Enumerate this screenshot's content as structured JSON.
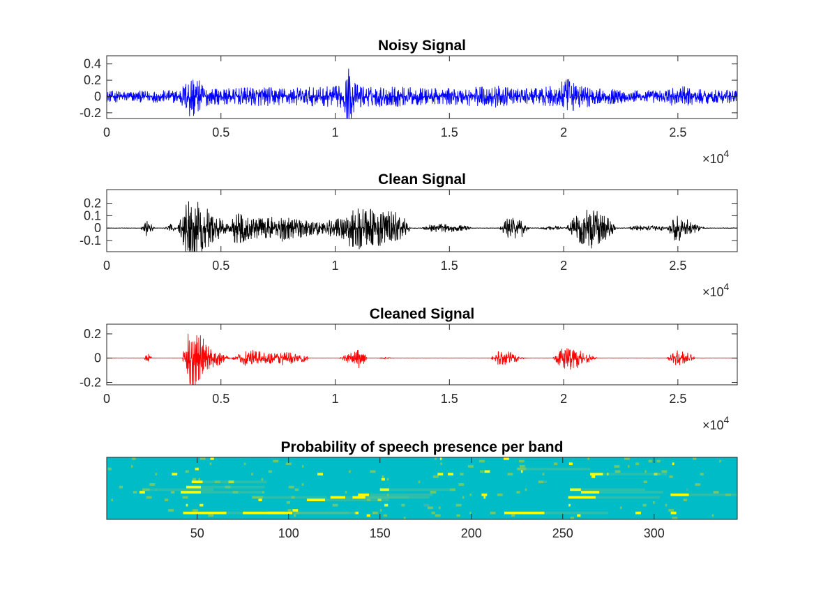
{
  "chart_data": [
    {
      "type": "line",
      "title": "Noisy Signal",
      "xlabel": "",
      "ylabel": "",
      "xlim": [
        0,
        27600
      ],
      "ylim": [
        -0.27,
        0.5
      ],
      "x_ticks": [
        0,
        5000,
        10000,
        15000,
        20000,
        25000
      ],
      "x_tick_labels": [
        "0",
        "0.5",
        "1",
        "1.5",
        "2",
        "2.5"
      ],
      "x_exponent": {
        "base": "×10",
        "power": "4"
      },
      "y_ticks": [
        -0.2,
        0,
        0.2,
        0.4
      ],
      "y_tick_labels": [
        "-0.2",
        "0",
        "0.2",
        "0.4"
      ],
      "grid": false,
      "color": "#0000ff",
      "envelope": {
        "x": [
          0,
          1500,
          3000,
          3400,
          3700,
          4100,
          4500,
          5500,
          6500,
          8000,
          9500,
          10300,
          10600,
          10900,
          11500,
          12500,
          13500,
          15000,
          16000,
          17000,
          17500,
          18000,
          19000,
          19800,
          20100,
          20500,
          21500,
          23000,
          24500,
          24900,
          25300,
          26000,
          27600
        ],
        "amplitude": [
          0.07,
          0.07,
          0.08,
          0.16,
          0.33,
          0.18,
          0.1,
          0.1,
          0.12,
          0.11,
          0.12,
          0.14,
          0.37,
          0.16,
          0.12,
          0.13,
          0.11,
          0.1,
          0.12,
          0.14,
          0.11,
          0.1,
          0.1,
          0.16,
          0.23,
          0.17,
          0.1,
          0.08,
          0.08,
          0.14,
          0.12,
          0.09,
          0.08
        ]
      }
    },
    {
      "type": "line",
      "title": "Clean Signal",
      "xlabel": "",
      "ylabel": "",
      "xlim": [
        0,
        27600
      ],
      "ylim": [
        -0.19,
        0.31
      ],
      "x_ticks": [
        0,
        5000,
        10000,
        15000,
        20000,
        25000
      ],
      "x_tick_labels": [
        "0",
        "0.5",
        "1",
        "1.5",
        "2",
        "2.5"
      ],
      "x_exponent": {
        "base": "×10",
        "power": "4"
      },
      "y_ticks": [
        -0.1,
        0,
        0.1,
        0.2
      ],
      "y_tick_labels": [
        "-0.1",
        "0",
        "0.1",
        "0.2"
      ],
      "grid": false,
      "color": "#000000",
      "envelope": {
        "x": [
          0,
          1500,
          1700,
          1900,
          2100,
          2500,
          2700,
          2900,
          3100,
          3400,
          3700,
          4200,
          4800,
          5300,
          5600,
          5800,
          6200,
          7000,
          7600,
          8200,
          8800,
          9500,
          10200,
          10600,
          10900,
          11300,
          11700,
          12200,
          12700,
          13000,
          13300,
          13800,
          14200,
          14800,
          15200,
          15500,
          16000,
          17200,
          17600,
          18200,
          18500,
          18800,
          19400,
          19700,
          20100,
          20600,
          21300,
          21500,
          22000,
          22300,
          22800,
          23100,
          24300,
          24500,
          24900,
          25300,
          25800,
          26200,
          27600
        ],
        "amplitude": [
          0.002,
          0.002,
          0.07,
          0.05,
          0.002,
          0.002,
          0.03,
          0.035,
          0.002,
          0.2,
          0.29,
          0.19,
          0.1,
          0.035,
          0.12,
          0.14,
          0.09,
          0.08,
          0.11,
          0.09,
          0.07,
          0.05,
          0.09,
          0.15,
          0.2,
          0.15,
          0.16,
          0.14,
          0.13,
          0.1,
          0.003,
          0.003,
          0.03,
          0.035,
          0.03,
          0.03,
          0.003,
          0.003,
          0.1,
          0.07,
          0.003,
          0.003,
          0.015,
          0.02,
          0.003,
          0.12,
          0.18,
          0.13,
          0.09,
          0.003,
          0.003,
          0.022,
          0.018,
          0.003,
          0.12,
          0.08,
          0.03,
          0.003,
          0.003
        ]
      }
    },
    {
      "type": "line",
      "title": "Cleaned Signal",
      "xlabel": "",
      "ylabel": "",
      "xlim": [
        0,
        27600
      ],
      "ylim": [
        -0.22,
        0.28
      ],
      "x_ticks": [
        0,
        5000,
        10000,
        15000,
        20000,
        25000
      ],
      "x_tick_labels": [
        "0",
        "0.5",
        "1",
        "1.5",
        "2",
        "2.5"
      ],
      "x_exponent": {
        "base": "×10",
        "power": "4"
      },
      "y_ticks": [
        -0.2,
        0,
        0.2
      ],
      "y_tick_labels": [
        "-0.2",
        "0",
        "0.2"
      ],
      "grid": false,
      "color": "#ff0000",
      "envelope": {
        "x": [
          0,
          1600,
          1800,
          2000,
          3300,
          3500,
          3700,
          4000,
          4500,
          5000,
          5400,
          5900,
          6100,
          6500,
          7000,
          7700,
          8100,
          8400,
          8600,
          8900,
          10200,
          10500,
          10900,
          11100,
          11400,
          11900,
          12200,
          12600,
          16800,
          17200,
          17500,
          17900,
          18100,
          18400,
          19500,
          19900,
          20200,
          20700,
          21000,
          21500,
          24500,
          24900,
          25100,
          25500,
          25800,
          27600
        ],
        "amplitude": [
          0.001,
          0.001,
          0.04,
          0.001,
          0.001,
          0.18,
          0.27,
          0.22,
          0.1,
          0.05,
          0.001,
          0.04,
          0.08,
          0.06,
          0.04,
          0.06,
          0.05,
          0.02,
          0.04,
          0.001,
          0.001,
          0.04,
          0.06,
          0.1,
          0.001,
          0.001,
          0.008,
          0.001,
          0.001,
          0.07,
          0.06,
          0.04,
          0.01,
          0.001,
          0.001,
          0.08,
          0.1,
          0.08,
          0.04,
          0.001,
          0.001,
          0.06,
          0.07,
          0.04,
          0.001,
          0.001
        ]
      }
    },
    {
      "type": "heatmap",
      "title": "Probability of speech presence per band",
      "xlabel": "",
      "ylabel": "",
      "xlim": [
        0.5,
        345.5
      ],
      "rows": 24,
      "x_ticks": [
        50,
        100,
        150,
        200,
        250,
        300
      ],
      "x_tick_labels": [
        "50",
        "100",
        "150",
        "200",
        "250",
        "300"
      ],
      "y_ticks": [],
      "colormap": {
        "low": "#00bcc6",
        "mid": "#6fc869",
        "high": "#f9fb0e"
      },
      "hot_streaks": [
        {
          "x": [
            44,
            66
          ],
          "row": 21,
          "p": 1.0
        },
        {
          "x": [
            75,
            98
          ],
          "row": 21,
          "p": 0.95
        },
        {
          "x": [
            88,
            102
          ],
          "row": 21,
          "p": 0.85
        },
        {
          "x": [
            218,
            240
          ],
          "row": 21,
          "p": 0.9
        },
        {
          "x": [
            41,
            52
          ],
          "row": 13,
          "p": 1.0
        },
        {
          "x": [
            44,
            52
          ],
          "row": 11,
          "p": 0.9
        },
        {
          "x": [
            47,
            53
          ],
          "row": 9,
          "p": 0.9
        },
        {
          "x": [
            110,
            120
          ],
          "row": 16,
          "p": 0.95
        },
        {
          "x": [
            123,
            131
          ],
          "row": 15,
          "p": 0.9
        },
        {
          "x": [
            135,
            142
          ],
          "row": 15,
          "p": 1.0
        },
        {
          "x": [
            138,
            144
          ],
          "row": 14,
          "p": 0.9
        },
        {
          "x": [
            150,
            155
          ],
          "row": 12,
          "p": 0.8
        },
        {
          "x": [
            253,
            268
          ],
          "row": 15,
          "p": 1.0
        },
        {
          "x": [
            260,
            270
          ],
          "row": 13,
          "p": 0.9
        },
        {
          "x": [
            254,
            260
          ],
          "row": 12,
          "p": 0.85
        },
        {
          "x": [
            265,
            272
          ],
          "row": 6,
          "p": 0.9
        },
        {
          "x": [
            309,
            319
          ],
          "row": 14,
          "p": 1.0
        },
        {
          "x": [
            225,
            230
          ],
          "row": 4,
          "p": 0.7
        },
        {
          "x": [
            20,
            24
          ],
          "row": 12,
          "p": 0.7
        },
        {
          "x": [
            80,
            86
          ],
          "row": 15,
          "p": 0.6
        }
      ]
    }
  ]
}
